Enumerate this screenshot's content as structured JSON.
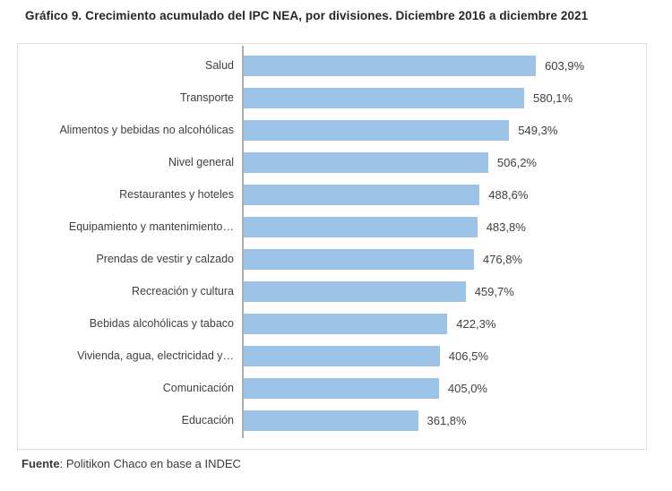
{
  "title": "Gráfico 9. Crecimiento acumulado del IPC NEA, por divisiones. Diciembre 2016 a diciembre 2021",
  "source": {
    "label": "Fuente",
    "text": ": Politikon Chaco en base a INDEC"
  },
  "colors": {
    "bar": "#9DC3E6",
    "axis": "#AEAEAE",
    "frame_border": "#DEDEDE",
    "label_text": "#3F3F3F",
    "value_text": "#404040",
    "title_text": "#262626"
  },
  "chart_data": {
    "type": "bar",
    "orientation": "horizontal",
    "title": "Gráfico 9. Crecimiento acumulado del IPC NEA, por divisiones. Diciembre 2016 a diciembre 2021",
    "categories": [
      "Salud",
      "Transporte",
      "Alimentos y bebidas no alcohólicas",
      "Nivel general",
      "Restaurantes y hoteles",
      "Equipamiento y mantenimiento…",
      "Prendas de vestir y calzado",
      "Recreación y cultura",
      "Bebidas alcohólicas y tabaco",
      "Vivienda, agua, electricidad y…",
      "Comunicación",
      "Educación"
    ],
    "values": [
      603.9,
      580.1,
      549.3,
      506.2,
      488.6,
      483.8,
      476.8,
      459.7,
      422.3,
      406.5,
      405.0,
      361.8
    ],
    "value_labels": [
      "603,9%",
      "580,1%",
      "549,3%",
      "506,2%",
      "488,6%",
      "483,8%",
      "476,8%",
      "459,7%",
      "422,3%",
      "406,5%",
      "405,0%",
      "361,8%"
    ],
    "xlabel": "",
    "ylabel": "",
    "xlim": [
      0,
      650
    ],
    "grid": false,
    "legend": false,
    "data_labels": true,
    "bar_color": "#9DC3E6",
    "source": "Fuente: Politikon Chaco en base a INDEC"
  }
}
